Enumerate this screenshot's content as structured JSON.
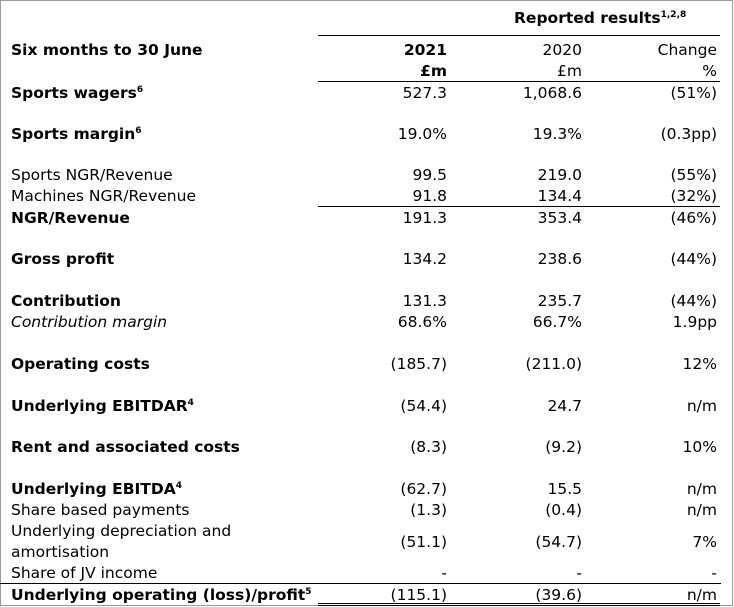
{
  "header": {
    "title": "Reported results",
    "title_sup": "1,2,8",
    "period_label": "Six months to 30 June",
    "col_2021": "2021",
    "col_2021_unit": "£m",
    "col_2020": "2020",
    "col_2020_unit": "£m",
    "col_change": "Change",
    "col_change_unit": "%"
  },
  "rows": [
    {
      "label": "Sports wagers",
      "sup": "6",
      "v2021": "527.3",
      "v2020": "1,068.6",
      "change": "(51%)"
    },
    {
      "label": "Sports margin",
      "sup": "6",
      "v2021": "19.0%",
      "v2020": "19.3%",
      "change": "(0.3pp)"
    },
    {
      "label": "Sports NGR/Revenue",
      "v2021": "99.5",
      "v2020": "219.0",
      "change": "(55%)"
    },
    {
      "label": "Machines NGR/Revenue",
      "v2021": "91.8",
      "v2020": "134.4",
      "change": "(32%)"
    },
    {
      "label": "NGR/Revenue",
      "v2021": "191.3",
      "v2020": "353.4",
      "change": "(46%)"
    },
    {
      "label": "Gross profit",
      "v2021": "134.2",
      "v2020": "238.6",
      "change": "(44%)"
    },
    {
      "label": "Contribution",
      "v2021": "131.3",
      "v2020": "235.7",
      "change": "(44%)"
    },
    {
      "label": "Contribution margin",
      "v2021": "68.6%",
      "v2020": "66.7%",
      "change": "1.9pp"
    },
    {
      "label": "Operating costs",
      "v2021": "(185.7)",
      "v2020": "(211.0)",
      "change": "12%"
    },
    {
      "label": "Underlying EBITDAR",
      "sup": "4",
      "v2021": "(54.4)",
      "v2020": "24.7",
      "change": "n/m"
    },
    {
      "label": "Rent and associated costs",
      "v2021": "(8.3)",
      "v2020": "(9.2)",
      "change": "10%"
    },
    {
      "label": "Underlying EBITDA",
      "sup": "4",
      "v2021": "(62.7)",
      "v2020": "15.5",
      "change": "n/m"
    },
    {
      "label": "Share based payments",
      "v2021": "(1.3)",
      "v2020": "(0.4)",
      "change": "n/m"
    },
    {
      "label": "Underlying depreciation and",
      "label2": "amortisation",
      "v2021": "(51.1)",
      "v2020": "(54.7)",
      "change": "7%"
    },
    {
      "label": "Share of JV income",
      "v2021": "-",
      "v2020": "-",
      "change": "-"
    },
    {
      "label": "Underlying operating (loss)/profit",
      "sup": "5",
      "v2021": "(115.1)",
      "v2020": "(39.6)",
      "change": "n/m"
    }
  ]
}
